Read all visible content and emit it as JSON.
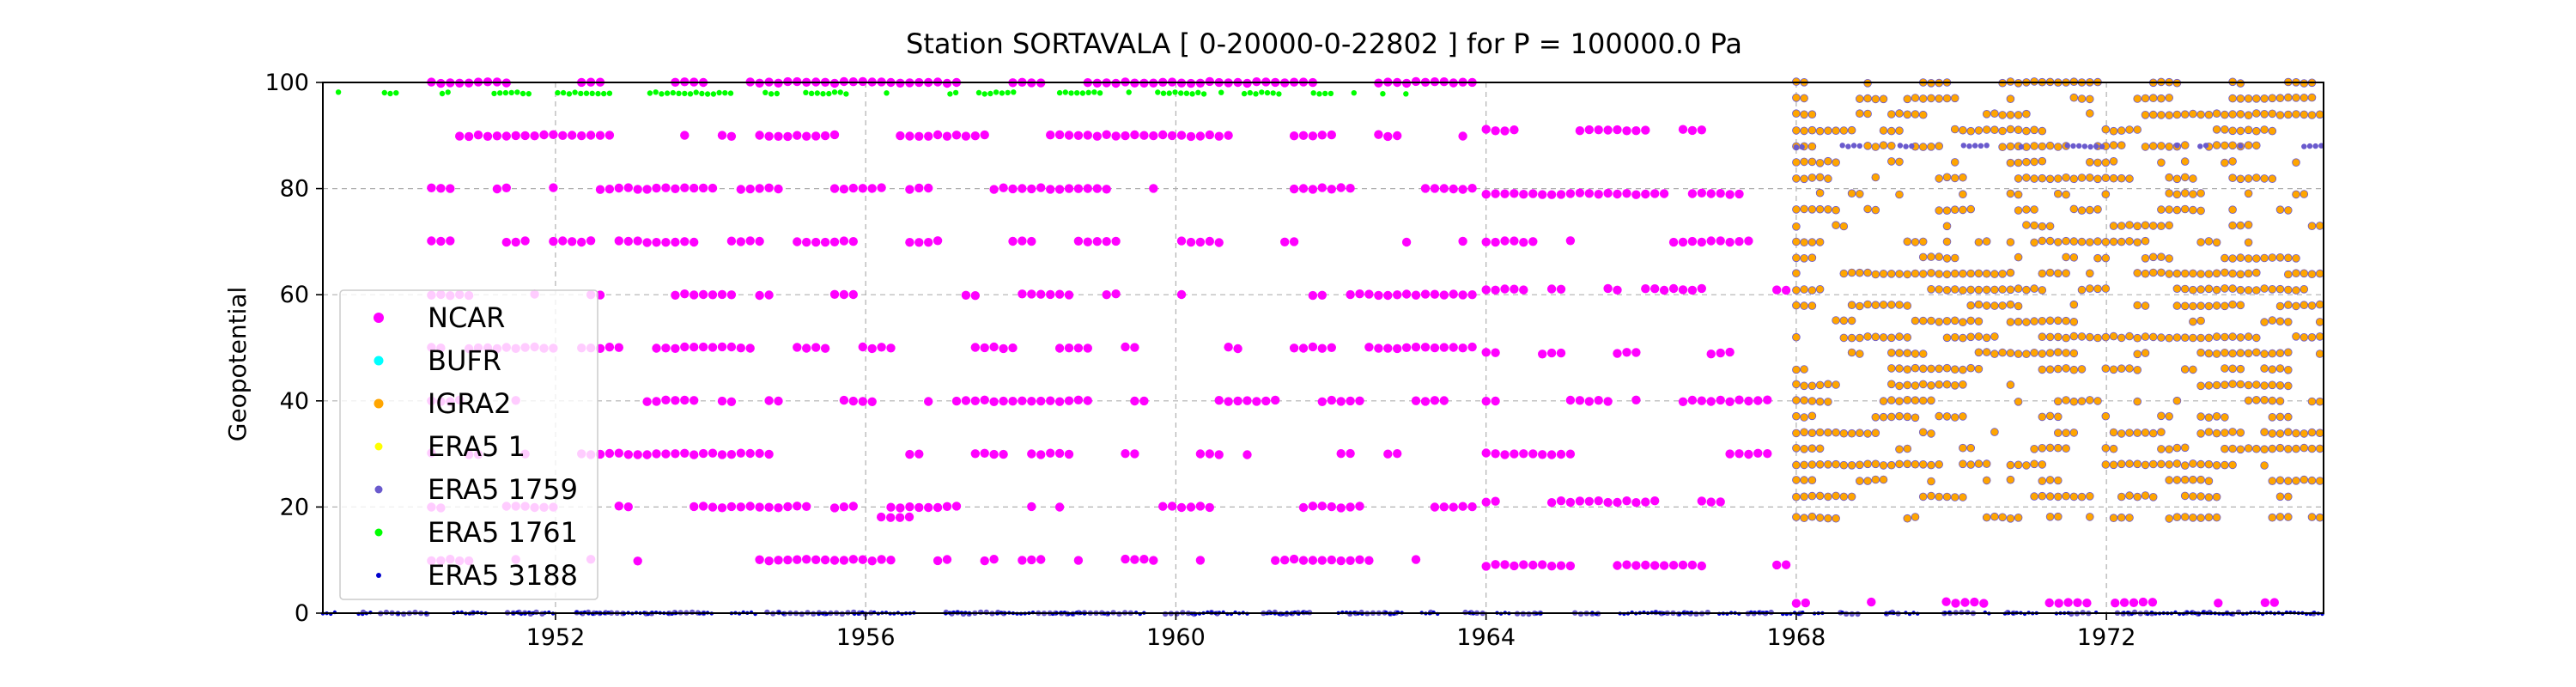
{
  "chart_data": {
    "type": "scatter",
    "title": "Station  SORTAVALA [ 0-20000-0-22802 ]  for P = 100000.0 Pa",
    "xlabel": "",
    "ylabel": "Geopotential",
    "xlim": [
      1949.0,
      1974.8
    ],
    "ylim": [
      0,
      100
    ],
    "xticks": [
      1952,
      1956,
      1960,
      1964,
      1968,
      1972
    ],
    "xtick_labels": [
      "1952",
      "1956",
      "1960",
      "1964",
      "1968",
      "1972"
    ],
    "yticks": [
      0,
      20,
      40,
      60,
      80,
      100
    ],
    "ytick_labels": [
      "0",
      "20",
      "40",
      "60",
      "80",
      "100"
    ],
    "grid": true,
    "legend_position": "lower-left",
    "series": [
      {
        "name": "NCAR",
        "color": "#ff00ff",
        "marker_size": "large",
        "bands": [
          {
            "y": 100,
            "x_start": 1950.4,
            "x_end": 1963.9
          },
          {
            "y": 90,
            "x_start": 1950.4,
            "x_end": 1963.9
          },
          {
            "y": 80,
            "x_start": 1950.4,
            "x_end": 1963.9
          },
          {
            "y": 70,
            "x_start": 1950.4,
            "x_end": 1963.9
          },
          {
            "y": 60,
            "x_start": 1950.4,
            "x_end": 1963.9
          },
          {
            "y": 50,
            "x_start": 1950.4,
            "x_end": 1963.9
          },
          {
            "y": 40,
            "x_start": 1950.4,
            "x_end": 1963.9
          },
          {
            "y": 30,
            "x_start": 1950.4,
            "x_end": 1963.9
          },
          {
            "y": 20,
            "x_start": 1950.4,
            "x_end": 1963.9
          },
          {
            "y": 18,
            "x_start": 1956.2,
            "x_end": 1957.0
          },
          {
            "y": 10,
            "x_start": 1950.4,
            "x_end": 1963.9
          },
          {
            "y": 91,
            "x_start": 1964.0,
            "x_end": 1967.9
          },
          {
            "y": 79,
            "x_start": 1964.0,
            "x_end": 1967.9
          },
          {
            "y": 70,
            "x_start": 1964.0,
            "x_end": 1967.9
          },
          {
            "y": 61,
            "x_start": 1964.0,
            "x_end": 1967.9
          },
          {
            "y": 49,
            "x_start": 1964.0,
            "x_end": 1967.9
          },
          {
            "y": 40,
            "x_start": 1964.0,
            "x_end": 1967.9
          },
          {
            "y": 30,
            "x_start": 1964.0,
            "x_end": 1967.9
          },
          {
            "y": 21,
            "x_start": 1964.0,
            "x_end": 1967.9
          },
          {
            "y": 9,
            "x_start": 1964.0,
            "x_end": 1967.9
          },
          {
            "y": 2,
            "x_start": 1968.0,
            "x_end": 1974.8
          }
        ]
      },
      {
        "name": "BUFR",
        "color": "#00ffff",
        "marker_size": "medium",
        "bands": []
      },
      {
        "name": "IGRA2",
        "color": "#ffa500",
        "marker_size": "medium",
        "bands": [
          {
            "y": 100,
            "x_start": 1968.0,
            "x_end": 1974.8
          },
          {
            "y": 97,
            "x_start": 1968.0,
            "x_end": 1974.8
          },
          {
            "y": 94,
            "x_start": 1968.0,
            "x_end": 1974.8
          },
          {
            "y": 91,
            "x_start": 1968.0,
            "x_end": 1974.8
          },
          {
            "y": 88,
            "x_start": 1968.0,
            "x_end": 1974.8
          },
          {
            "y": 85,
            "x_start": 1968.0,
            "x_end": 1974.8
          },
          {
            "y": 82,
            "x_start": 1968.0,
            "x_end": 1974.8
          },
          {
            "y": 79,
            "x_start": 1968.0,
            "x_end": 1974.8
          },
          {
            "y": 76,
            "x_start": 1968.0,
            "x_end": 1974.8
          },
          {
            "y": 73,
            "x_start": 1968.0,
            "x_end": 1974.8
          },
          {
            "y": 70,
            "x_start": 1968.0,
            "x_end": 1974.8
          },
          {
            "y": 67,
            "x_start": 1968.0,
            "x_end": 1974.8
          },
          {
            "y": 64,
            "x_start": 1968.0,
            "x_end": 1974.8
          },
          {
            "y": 61,
            "x_start": 1968.0,
            "x_end": 1974.8
          },
          {
            "y": 58,
            "x_start": 1968.0,
            "x_end": 1974.8
          },
          {
            "y": 55,
            "x_start": 1968.0,
            "x_end": 1974.8
          },
          {
            "y": 52,
            "x_start": 1968.0,
            "x_end": 1974.8
          },
          {
            "y": 49,
            "x_start": 1968.0,
            "x_end": 1974.8
          },
          {
            "y": 46,
            "x_start": 1968.0,
            "x_end": 1974.8
          },
          {
            "y": 43,
            "x_start": 1968.0,
            "x_end": 1974.8
          },
          {
            "y": 40,
            "x_start": 1968.0,
            "x_end": 1974.8
          },
          {
            "y": 37,
            "x_start": 1968.0,
            "x_end": 1974.8
          },
          {
            "y": 34,
            "x_start": 1968.0,
            "x_end": 1974.8
          },
          {
            "y": 31,
            "x_start": 1968.0,
            "x_end": 1974.8
          },
          {
            "y": 28,
            "x_start": 1968.0,
            "x_end": 1974.8
          },
          {
            "y": 25,
            "x_start": 1968.0,
            "x_end": 1974.8
          },
          {
            "y": 22,
            "x_start": 1968.0,
            "x_end": 1974.8
          },
          {
            "y": 18,
            "x_start": 1968.0,
            "x_end": 1974.8
          }
        ]
      },
      {
        "name": "ERA5 1",
        "color": "#ffff00",
        "marker_size": "small",
        "bands": []
      },
      {
        "name": "ERA5 1759",
        "color": "#6a5acd",
        "marker_size": "small",
        "bands": [
          {
            "y": 88,
            "x_start": 1968.0,
            "x_end": 1974.8
          },
          {
            "y": 0,
            "x_start": 1949.0,
            "x_end": 1974.8
          }
        ]
      },
      {
        "name": "ERA5 1761",
        "color": "#00ff00",
        "marker_size": "small",
        "bands": [
          {
            "y": 98,
            "x_start": 1949.2,
            "x_end": 1963.9
          }
        ]
      },
      {
        "name": "ERA5 3188",
        "color": "#0000cd",
        "marker_size": "tiny",
        "bands": [
          {
            "y": 0,
            "x_start": 1949.0,
            "x_end": 1974.8
          }
        ]
      }
    ]
  }
}
